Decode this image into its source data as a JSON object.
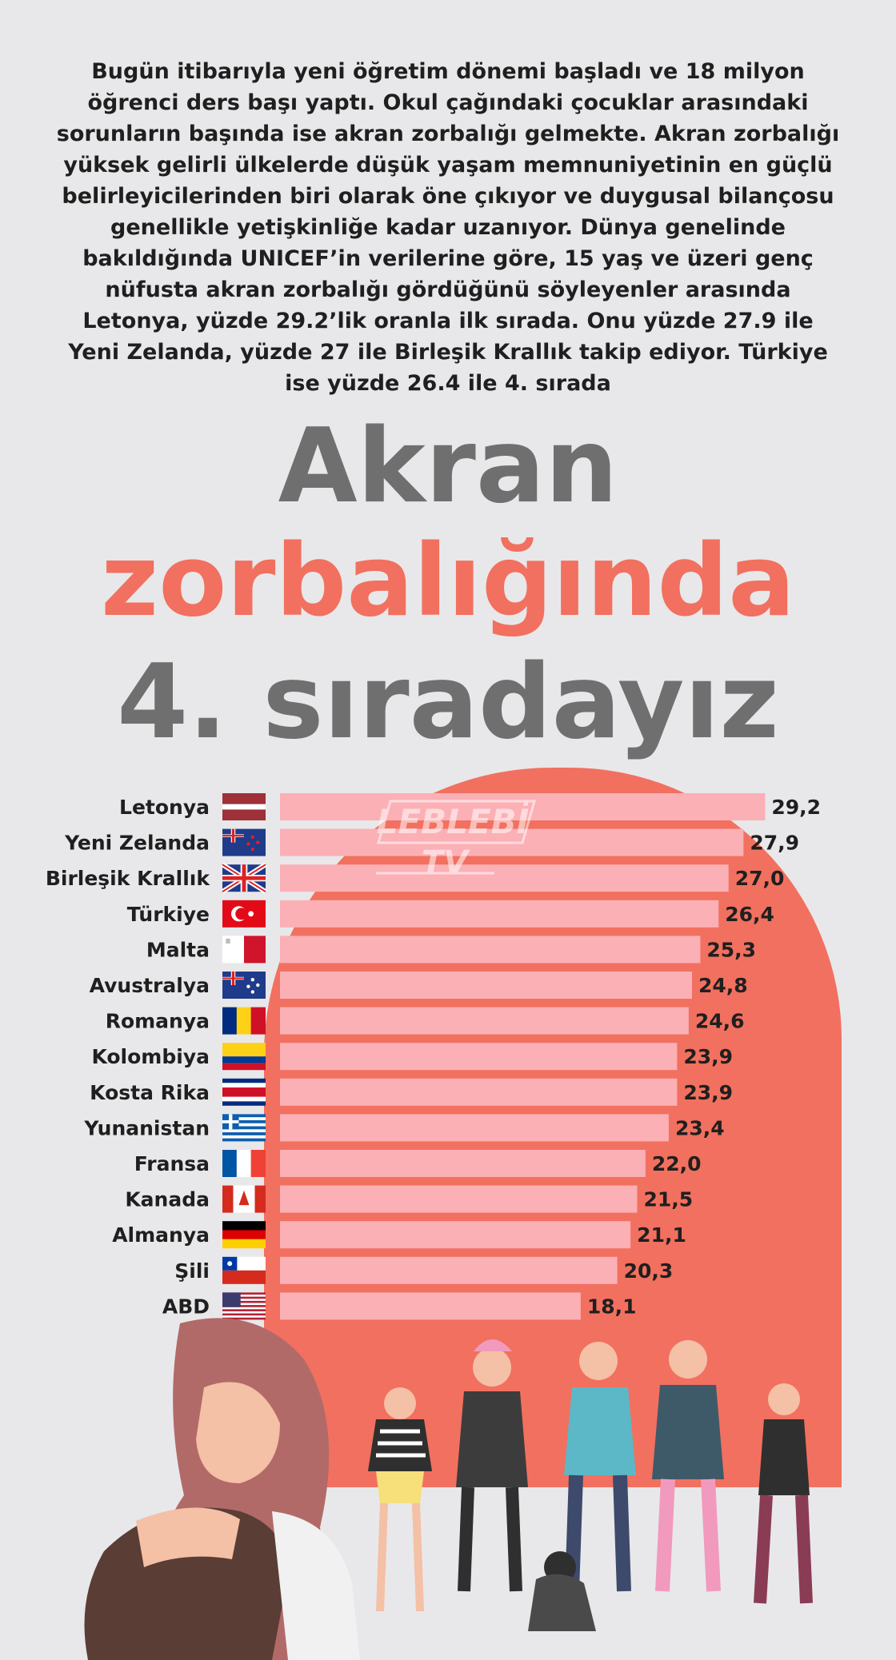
{
  "intro_text": "Bugün itibarıyla yeni öğretim dönemi başladı ve 18 milyon öğrenci ders başı yaptı. Okul çağındaki çocuklar arasındaki sorunların başında ise akran zorbalığı gelmekte. Akran zorbalığı yüksek gelirli ülkelerde düşük yaşam memnuniyetinin en güçlü belirleyicilerinden biri olarak öne çıkıyor ve duygusal bilançosu genellikle yetişkinliğe kadar uzanıyor. Dünya genelinde bakıldığında UNICEF’in verilerine göre, 15 yaş ve üzeri genç nüfusta akran zorbalığı gördüğünü söyleyenler arasında Letonya, yüzde 29.2’lik oranla ilk sırada. Onu yüzde 27.9 ile Yeni Zelanda, yüzde 27 ile Birleşik Krallık takip ediyor. Türkiye ise yüzde 26.4 ile 4. sırada",
  "headline": {
    "line1": "Akran",
    "line2": "zorbalığında",
    "line3": "4. sıradayız"
  },
  "watermark": {
    "line1": "LEBLEBİ",
    "line2": "TV"
  },
  "colors": {
    "background": "#e8e8ea",
    "accent": "#f2705f",
    "bar": "#fbb0b6",
    "title_gray": "#6f6f6f"
  },
  "chart_data": {
    "type": "bar",
    "orientation": "horizontal",
    "title": "",
    "xlabel": "",
    "ylabel": "",
    "xlim": [
      0,
      30
    ],
    "grid": false,
    "categories": [
      "Letonya",
      "Yeni Zelanda",
      "Birleşik Krallık",
      "Türkiye",
      "Malta",
      "Avustralya",
      "Romanya",
      "Kolombiya",
      "Kosta Rika",
      "Yunanistan",
      "Fransa",
      "Kanada",
      "Almanya",
      "Şili",
      "ABD"
    ],
    "values": [
      29.2,
      27.9,
      27.0,
      26.4,
      25.3,
      24.8,
      24.6,
      23.9,
      23.9,
      23.4,
      22.0,
      21.5,
      21.1,
      20.3,
      18.1
    ],
    "value_labels": [
      "29,2",
      "27,9",
      "27,0",
      "26,4",
      "25,3",
      "24,8",
      "24,6",
      "23,9",
      "23,9",
      "23,4",
      "22,0",
      "21,5",
      "21,1",
      "20,3",
      "18,1"
    ],
    "flags": [
      "latvia-flag",
      "new-zealand-flag",
      "united-kingdom-flag",
      "turkey-flag",
      "malta-flag",
      "australia-flag",
      "romania-flag",
      "colombia-flag",
      "costa-rica-flag",
      "greece-flag",
      "france-flag",
      "canada-flag",
      "germany-flag",
      "chile-flag",
      "usa-flag"
    ]
  }
}
